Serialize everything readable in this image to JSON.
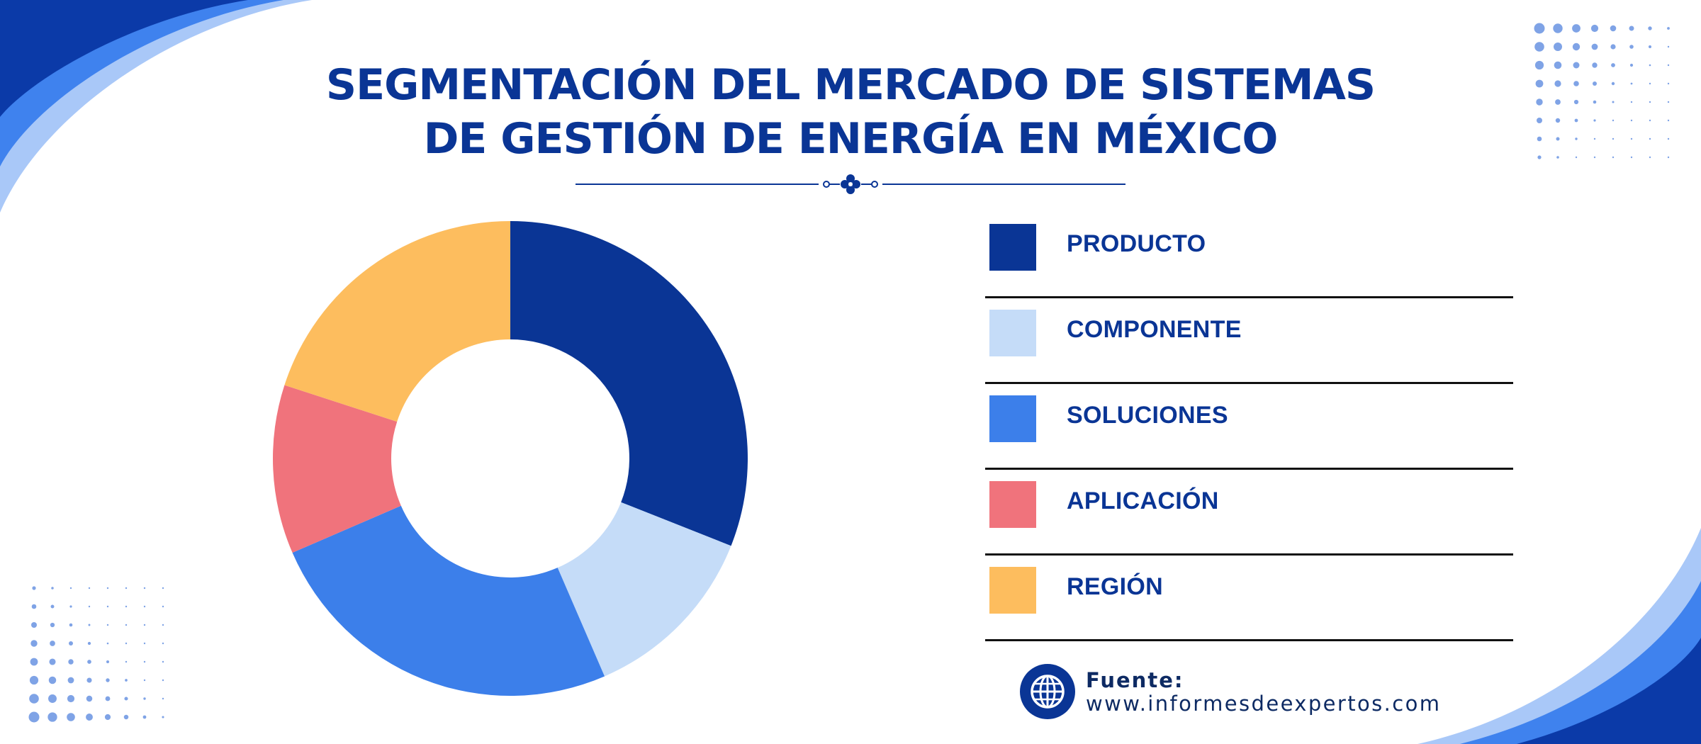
{
  "colors": {
    "navy": "#0a3595",
    "blue": "#3c7fea",
    "light_blue": "#c5dcf8",
    "pale_blue": "#9fc2f7",
    "coral": "#f0737c",
    "amber": "#fdbd5e",
    "text_dark": "#0d2a63"
  },
  "header": {
    "title_line1": "SEGMENTACIÓN DEL MERCADO DE SISTEMAS",
    "title_line2": "DE GESTIÓN DE ENERGÍA EN MÉXICO"
  },
  "chart_data": {
    "type": "pie",
    "variant": "donut",
    "title": "SEGMENTACIÓN DEL MERCADO DE SISTEMAS DE GESTIÓN DE ENERGÍA EN MÉXICO",
    "legend_position": "right",
    "categories": [
      "PRODUCTO",
      "COMPONENTE",
      "SOLUCIONES",
      "APLICACIÓN",
      "REGIÓN"
    ],
    "values": [
      31,
      12.5,
      25,
      11.5,
      20
    ],
    "colors": [
      "#0a3595",
      "#c5dcf8",
      "#3c7fea",
      "#f0737c",
      "#fdbd5e"
    ]
  },
  "legend": {
    "items": [
      {
        "label": "PRODUCTO",
        "color": "#0a3595"
      },
      {
        "label": "COMPONENTE",
        "color": "#c5dcf8"
      },
      {
        "label": "SOLUCIONES",
        "color": "#3c7fea"
      },
      {
        "label": "APLICACIÓN",
        "color": "#f0737c"
      },
      {
        "label": "REGIÓN",
        "color": "#fdbd5e"
      }
    ]
  },
  "source": {
    "label": "Fuente:",
    "url": "www.informesdeexpertos.com",
    "icon": "globe-icon"
  },
  "decorations": {
    "corner_waves": "wave-decoration",
    "dot_grids": "dot-pattern"
  }
}
